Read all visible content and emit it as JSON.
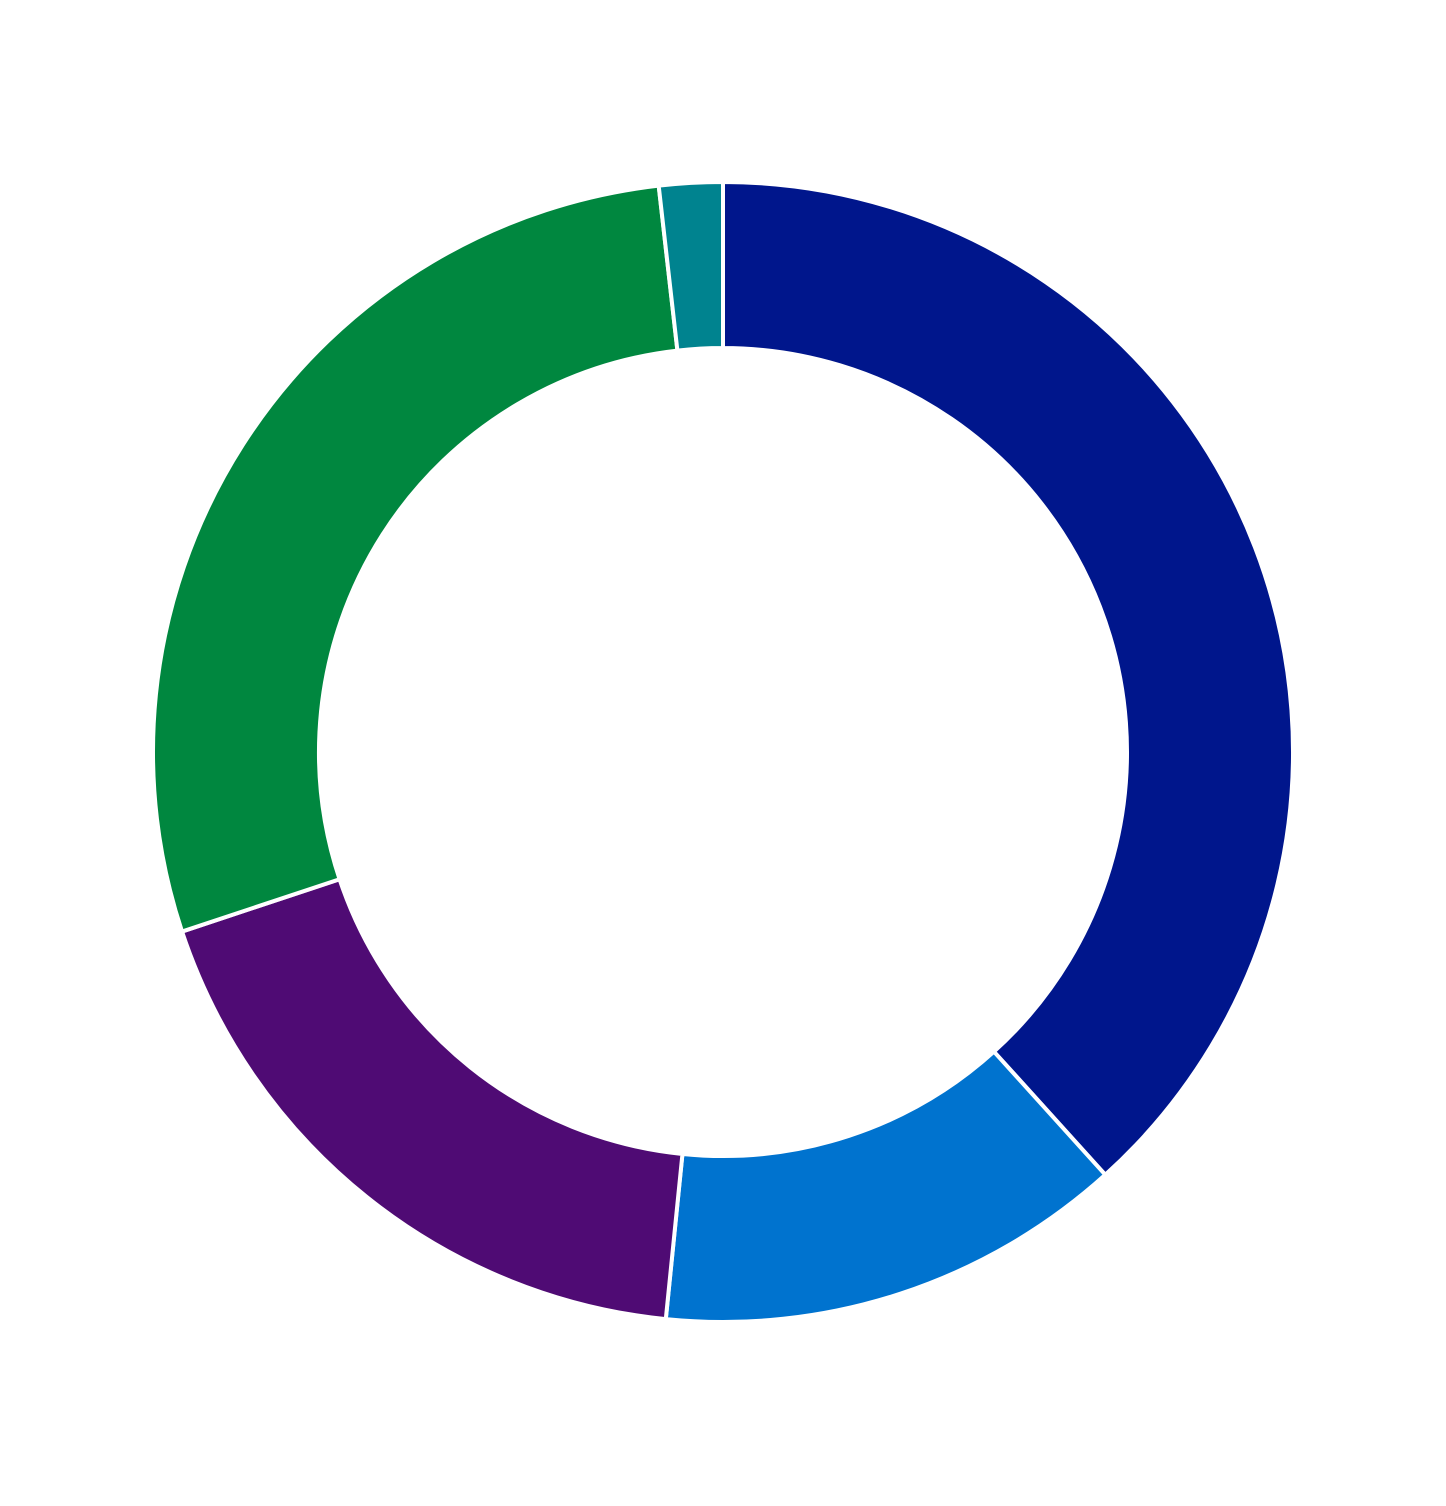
{
  "chart_data": {
    "type": "donut",
    "values": [
      38.3,
      13.3,
      18.3,
      28.3,
      1.8
    ],
    "colors": [
      "#00168c",
      "#0073cf",
      "#4f0b74",
      "#00873f",
      "#00838f"
    ]
  }
}
